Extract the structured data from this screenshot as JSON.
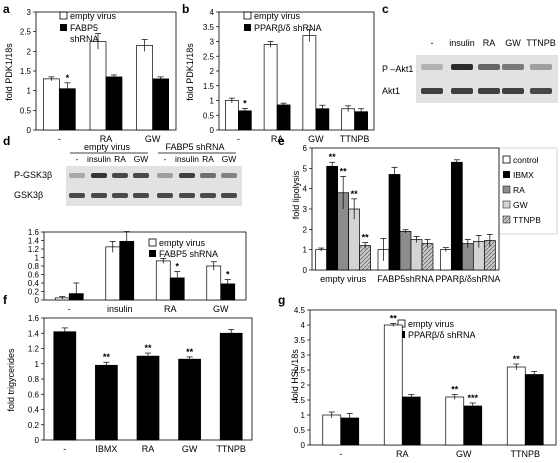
{
  "colors": {
    "bar_black": "#000000",
    "bar_white": "#ffffff",
    "bar_gray": "#8c8c8c",
    "bar_light": "#d4d4d4",
    "bar_hatch": "#bdbdbd",
    "blot_bg": "#e2e2e2",
    "band": "#2a2a2a"
  },
  "panels": {
    "a": {
      "letter": "a",
      "ylabel": "fold PDK1/18s",
      "yticks": [
        "0",
        "0.5",
        "1",
        "1.5",
        "2",
        "2.5",
        "3"
      ],
      "legend": [
        "empty virus",
        "FABP5",
        "shRNA"
      ]
    },
    "b": {
      "letter": "b",
      "ylabel": "fold PDK1/18s",
      "yticks": [
        "0",
        "0.5",
        "1",
        "1.5",
        "2",
        "2.5",
        "3",
        "3.5",
        "4"
      ],
      "legend": [
        "empty virus",
        "PPARβ/δ shRNA"
      ]
    },
    "c": {
      "letter": "c",
      "lanes": [
        "-",
        "insulin",
        "RA",
        "GW",
        "TTNPB"
      ],
      "rows": [
        "P –Akt1",
        "Akt1"
      ]
    },
    "d": {
      "letter": "d",
      "groups": [
        "empty virus",
        "FABP5 shRNA"
      ],
      "lanes": [
        "-",
        "insulin",
        "RA",
        "GW",
        "-",
        "insulin",
        "RA",
        "GW"
      ],
      "rows": [
        "P-GSK3β",
        "GSK3β"
      ],
      "yticks": [
        "0",
        "0.2",
        "0.4",
        "0.6",
        "0.8",
        "1",
        "1.2",
        "1.4",
        "1.6"
      ],
      "legend": [
        "empty virus",
        "FABP5 shRNA"
      ]
    },
    "e": {
      "letter": "e",
      "ylabel": "fold lipolysis",
      "yticks": [
        "0",
        "1",
        "2",
        "3",
        "4",
        "5",
        "6"
      ],
      "legend": [
        "control",
        "IBMX",
        "RA",
        "GW",
        "TTNPB"
      ]
    },
    "f": {
      "letter": "f",
      "ylabel": "fold trigycerides",
      "yticks": [
        "0",
        "0.2",
        "0.4",
        "0.6",
        "0.8",
        "1",
        "1.2",
        "1.4",
        "1.6"
      ]
    },
    "g": {
      "letter": "g",
      "ylabel": "fold HSL/18s",
      "yticks": [
        "0",
        "0.5",
        "1",
        "1.5",
        "2",
        "2.5",
        "3",
        "3.5",
        "4",
        "4.5"
      ],
      "legend": [
        "empty virus",
        "PPARβ/δ shRNA"
      ]
    }
  },
  "chart_data": [
    {
      "panel": "a",
      "type": "bar",
      "categories": [
        "-",
        "RA",
        "GW"
      ],
      "ylim": [
        0,
        3
      ],
      "ylabel": "fold PDK1/18s",
      "series": [
        {
          "name": "empty virus",
          "values": [
            1.3,
            2.25,
            2.15
          ],
          "errors": [
            0.05,
            0.2,
            0.15
          ]
        },
        {
          "name": "FABP5 shRNA",
          "values": [
            1.05,
            1.35,
            1.3
          ],
          "errors": [
            0.15,
            0.05,
            0.05
          ]
        }
      ],
      "annotations": [
        {
          "category": "-",
          "series": 1,
          "text": "*"
        }
      ]
    },
    {
      "panel": "b",
      "type": "bar",
      "categories": [
        "-",
        "RA",
        "GW",
        "TTNPB"
      ],
      "ylim": [
        0,
        4
      ],
      "ylabel": "fold PDK1/18s",
      "series": [
        {
          "name": "empty virus",
          "values": [
            1.0,
            2.9,
            3.2,
            0.72
          ],
          "errors": [
            0.08,
            0.1,
            0.2,
            0.1
          ]
        },
        {
          "name": "PPARβ/δ shRNA",
          "values": [
            0.65,
            0.85,
            0.72,
            0.62
          ],
          "errors": [
            0.08,
            0.06,
            0.12,
            0.1
          ]
        }
      ],
      "annotations": [
        {
          "category": "-",
          "series": 1,
          "text": "*"
        }
      ]
    },
    {
      "panel": "d",
      "type": "bar",
      "categories": [
        "-",
        "insulin",
        "RA",
        "GW"
      ],
      "ylim": [
        0,
        1.6
      ],
      "series": [
        {
          "name": "empty virus",
          "values": [
            0.05,
            1.25,
            0.92,
            0.8
          ],
          "errors": [
            0.03,
            0.13,
            0.06,
            0.1
          ]
        },
        {
          "name": "FABP5 shRNA",
          "values": [
            0.15,
            1.38,
            0.52,
            0.38
          ],
          "errors": [
            0.25,
            0.23,
            0.15,
            0.1
          ]
        }
      ],
      "annotations": [
        {
          "category": "RA",
          "series": 1,
          "text": "*"
        },
        {
          "category": "GW",
          "series": 1,
          "text": "*"
        }
      ]
    },
    {
      "panel": "e",
      "type": "bar",
      "categories": [
        "empty virus",
        "FABP5shRNA",
        "PPARβ/δshRNA"
      ],
      "ylim": [
        0,
        6
      ],
      "ylabel": "fold lipolysis",
      "series": [
        {
          "name": "control",
          "values": [
            1.0,
            1.0,
            1.0
          ],
          "errors": [
            0.08,
            0.55,
            0.1
          ]
        },
        {
          "name": "IBMX",
          "values": [
            5.1,
            4.7,
            5.3
          ],
          "errors": [
            0.2,
            0.35,
            0.12
          ]
        },
        {
          "name": "RA",
          "values": [
            3.8,
            1.9,
            1.3
          ],
          "errors": [
            0.8,
            0.08,
            0.2
          ]
        },
        {
          "name": "GW",
          "values": [
            3.0,
            1.5,
            1.4
          ],
          "errors": [
            0.5,
            0.15,
            0.3
          ]
        },
        {
          "name": "TTNPB",
          "values": [
            1.2,
            1.3,
            1.45
          ],
          "errors": [
            0.15,
            0.2,
            0.3
          ]
        }
      ],
      "annotations": [
        {
          "category": "empty virus",
          "series": 1,
          "text": "**"
        },
        {
          "category": "empty virus",
          "series": 2,
          "text": "**"
        },
        {
          "category": "empty virus",
          "series": 3,
          "text": "**"
        },
        {
          "category": "empty virus",
          "series": 4,
          "text": "**"
        }
      ]
    },
    {
      "panel": "f",
      "type": "bar",
      "categories": [
        "-",
        "IBMX",
        "RA",
        "GW",
        "TTNPB"
      ],
      "ylim": [
        0,
        1.6
      ],
      "ylabel": "fold trigycerides",
      "series": [
        {
          "values": [
            1.42,
            0.98,
            1.1,
            1.06,
            1.4
          ],
          "errors": [
            0.05,
            0.04,
            0.04,
            0.03,
            0.05
          ]
        }
      ],
      "annotations": [
        {
          "category": "IBMX",
          "series": 0,
          "text": "**"
        },
        {
          "category": "RA",
          "series": 0,
          "text": "**"
        },
        {
          "category": "GW",
          "series": 0,
          "text": "**"
        }
      ]
    },
    {
      "panel": "g",
      "type": "bar",
      "categories": [
        "-",
        "RA",
        "GW",
        "TTNPB"
      ],
      "ylim": [
        0,
        4.5
      ],
      "ylabel": "fold HSL/18s",
      "series": [
        {
          "name": "empty virus",
          "values": [
            1.0,
            4.0,
            1.6,
            2.6
          ],
          "errors": [
            0.1,
            0.05,
            0.08,
            0.1
          ]
        },
        {
          "name": "PPARβ/δ shRNA",
          "values": [
            0.9,
            1.6,
            1.3,
            2.35
          ],
          "errors": [
            0.15,
            0.08,
            0.1,
            0.1
          ]
        }
      ],
      "annotations": [
        {
          "category": "RA",
          "series": 0,
          "text": "**"
        },
        {
          "category": "GW",
          "series": 0,
          "text": "**"
        },
        {
          "category": "GW",
          "series": 1,
          "text": "***"
        },
        {
          "category": "TTNPB",
          "series": 0,
          "text": "**"
        }
      ]
    }
  ]
}
